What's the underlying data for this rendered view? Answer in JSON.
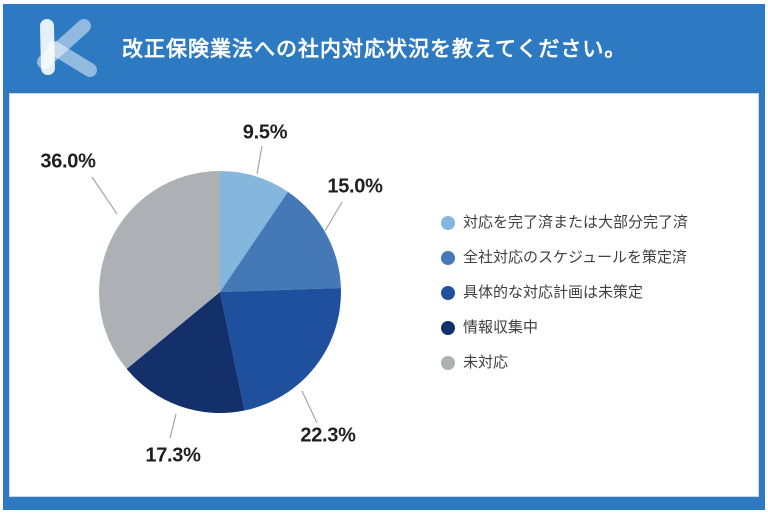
{
  "header": {
    "title": "改正保険業法への社内対応状況を教えてください。",
    "logo": "k-cross-logo"
  },
  "colors": {
    "frame_blue": "#2E7AC2",
    "card_bg": "#FFFFFF",
    "percent_text": "#1F1F1F",
    "legend_text": "#3F3F3F",
    "leader_line": "#A6A6A6"
  },
  "chart_data": {
    "type": "pie",
    "title": "改正保険業法への社内対応状況を教えてください。",
    "start_angle_deg": 0,
    "direction": "clockwise",
    "legend_position": "right",
    "slices": [
      {
        "label": "対応を完了済または大部分完了済",
        "value": 9.5,
        "percent_label": "9.5%",
        "color": "#85B7DD"
      },
      {
        "label": "全社対応のスケジュールを策定済",
        "value": 15.0,
        "percent_label": "15.0%",
        "color": "#4478B7"
      },
      {
        "label": "具体的な対応計画は未策定",
        "value": 22.3,
        "percent_label": "22.3%",
        "color": "#1F509E"
      },
      {
        "label": "情報収集中",
        "value": 17.3,
        "percent_label": "17.3%",
        "color": "#14306B"
      },
      {
        "label": "未対応",
        "value": 36.0,
        "percent_label": "36.0%",
        "color": "#ADB1B6"
      }
    ]
  }
}
